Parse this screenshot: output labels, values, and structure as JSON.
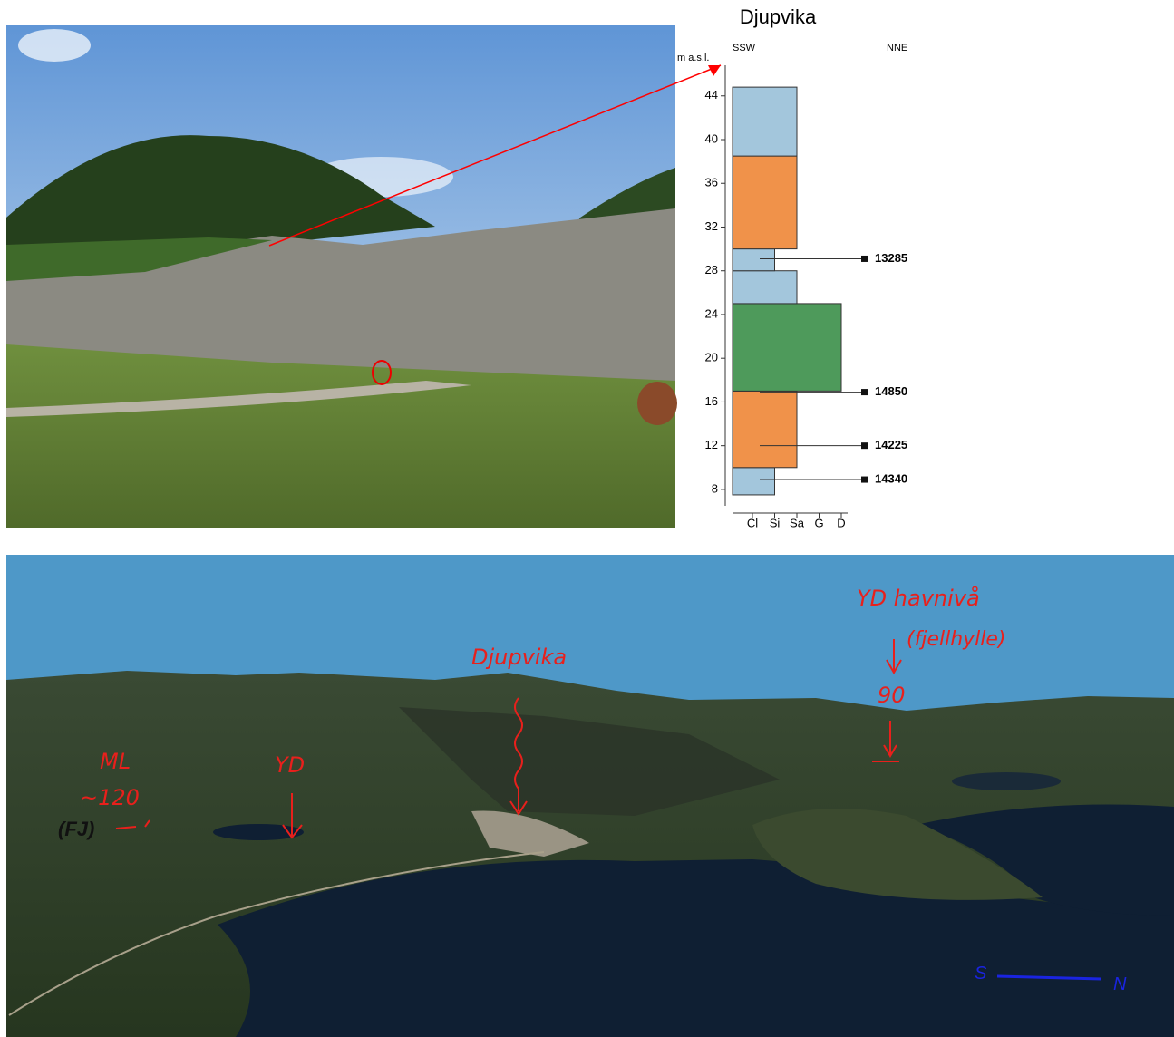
{
  "log": {
    "title": "Djupvika",
    "left_direction": "SSW",
    "right_direction": "NNE",
    "y_label": "m a.s.l.",
    "ylim": [
      6.5,
      46.8
    ],
    "yticks": [
      8,
      12,
      16,
      20,
      24,
      28,
      32,
      36,
      40,
      44
    ],
    "grain_sizes": [
      "Cl",
      "Si",
      "Sa",
      "G",
      "D"
    ],
    "units": [
      {
        "bottom": 7.5,
        "top": 10,
        "grain": "Si",
        "color": "#a3c6dc"
      },
      {
        "bottom": 10,
        "top": 17,
        "grain": "Sa",
        "color": "#f0924a"
      },
      {
        "bottom": 17,
        "top": 25,
        "grain": "D",
        "color": "#4e9a5b"
      },
      {
        "bottom": 25,
        "top": 28,
        "grain": "Sa",
        "color": "#a3c6dc"
      },
      {
        "bottom": 28,
        "top": 30,
        "grain": "Si",
        "color": "#a3c6dc"
      },
      {
        "bottom": 30,
        "top": 38.5,
        "grain": "Sa",
        "color": "#f0924a"
      },
      {
        "bottom": 38.5,
        "top": 44.8,
        "grain": "Sa",
        "color": "#a3c6dc"
      }
    ],
    "samples": [
      {
        "label": "13285",
        "elevation": 29.1
      },
      {
        "label": "14850",
        "elevation": 16.9
      },
      {
        "label": "14225",
        "elevation": 12
      },
      {
        "label": "14340",
        "elevation": 8.9
      }
    ]
  },
  "terrain": {
    "ml": "ML",
    "ml_level": "~120",
    "fj": "(FJ)",
    "yd": "YD",
    "djupvika": "Djupvika",
    "yd_sea_level": "YD havnivå",
    "shelf": "(fjellhylle)",
    "level_90": "90",
    "south": "S",
    "north": "N"
  }
}
